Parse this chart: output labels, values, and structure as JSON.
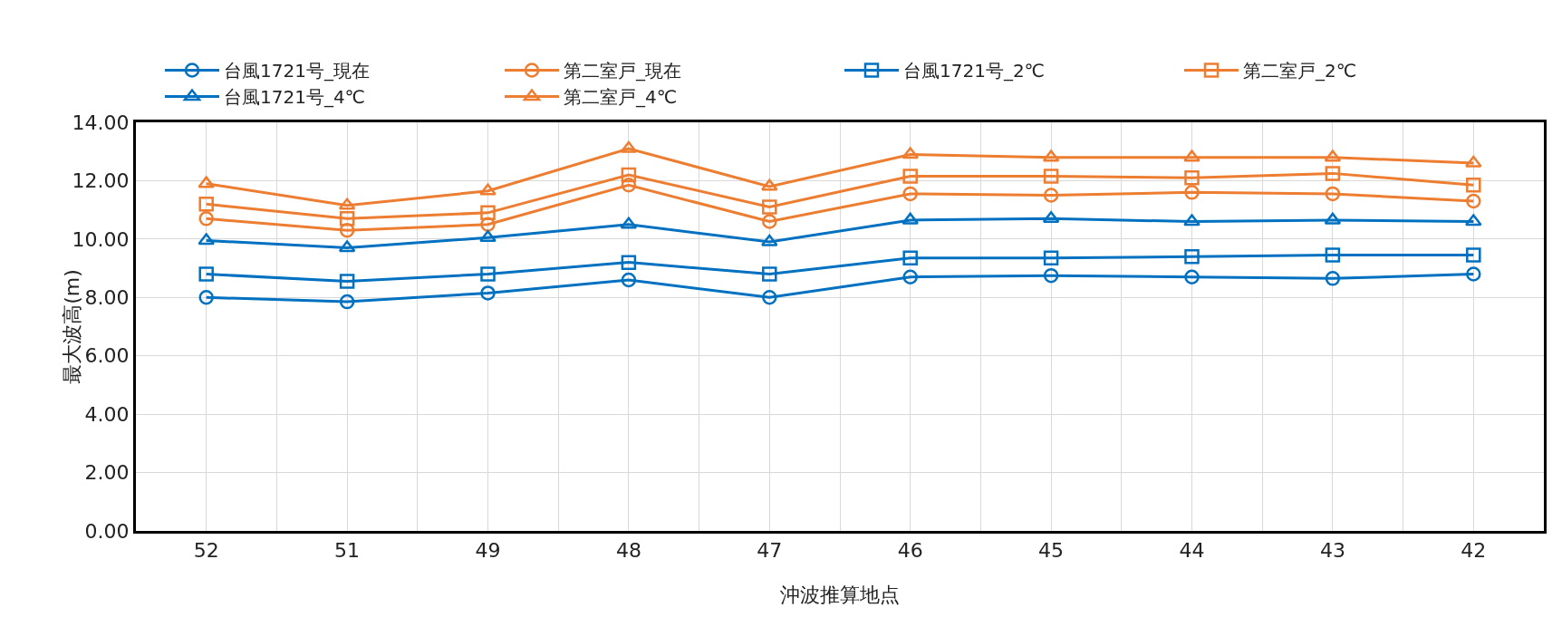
{
  "chart_data": {
    "type": "line",
    "xlabel": "沖波推算地点",
    "ylabel": "最大波高(m)",
    "categories": [
      "52",
      "51",
      "49",
      "48",
      "47",
      "46",
      "45",
      "44",
      "43",
      "42"
    ],
    "ylim": [
      0,
      14
    ],
    "yticks": [
      {
        "value": 0,
        "label": "0.00"
      },
      {
        "value": 2,
        "label": "2.00"
      },
      {
        "value": 4,
        "label": "4.00"
      },
      {
        "value": 6,
        "label": "6.00"
      },
      {
        "value": 8,
        "label": "8.00"
      },
      {
        "value": 10,
        "label": "10.00"
      },
      {
        "value": 12,
        "label": "12.00"
      },
      {
        "value": 14,
        "label": "14.00"
      }
    ],
    "grid": true,
    "legend": "top",
    "line_style": "solid",
    "series": [
      {
        "name": "台風1721号_現在",
        "color": "#0070c0",
        "marker": "circle",
        "values": [
          8.0,
          7.85,
          8.15,
          8.6,
          8.0,
          8.7,
          8.75,
          8.7,
          8.65,
          8.8
        ]
      },
      {
        "name": "第二室戸_現在",
        "color": "#ed7d31",
        "marker": "circle",
        "values": [
          10.7,
          10.3,
          10.5,
          11.85,
          10.6,
          11.55,
          11.5,
          11.6,
          11.55,
          11.3
        ]
      },
      {
        "name": "台風1721号_2℃",
        "color": "#0070c0",
        "marker": "square",
        "values": [
          8.8,
          8.55,
          8.8,
          9.2,
          8.8,
          9.35,
          9.35,
          9.4,
          9.45,
          9.45
        ]
      },
      {
        "name": "第二室戸_2℃",
        "color": "#ed7d31",
        "marker": "square",
        "values": [
          11.2,
          10.7,
          10.9,
          12.2,
          11.1,
          12.15,
          12.15,
          12.1,
          12.25,
          11.85
        ]
      },
      {
        "name": "台風1721号_4℃",
        "color": "#0070c0",
        "marker": "triangle",
        "values": [
          9.95,
          9.7,
          10.05,
          10.5,
          9.9,
          10.65,
          10.7,
          10.6,
          10.65,
          10.6
        ]
      },
      {
        "name": "第二室戸_4℃",
        "color": "#ed7d31",
        "marker": "triangle",
        "values": [
          11.9,
          11.15,
          11.65,
          13.1,
          11.8,
          12.9,
          12.8,
          12.8,
          12.8,
          12.6
        ]
      }
    ]
  }
}
